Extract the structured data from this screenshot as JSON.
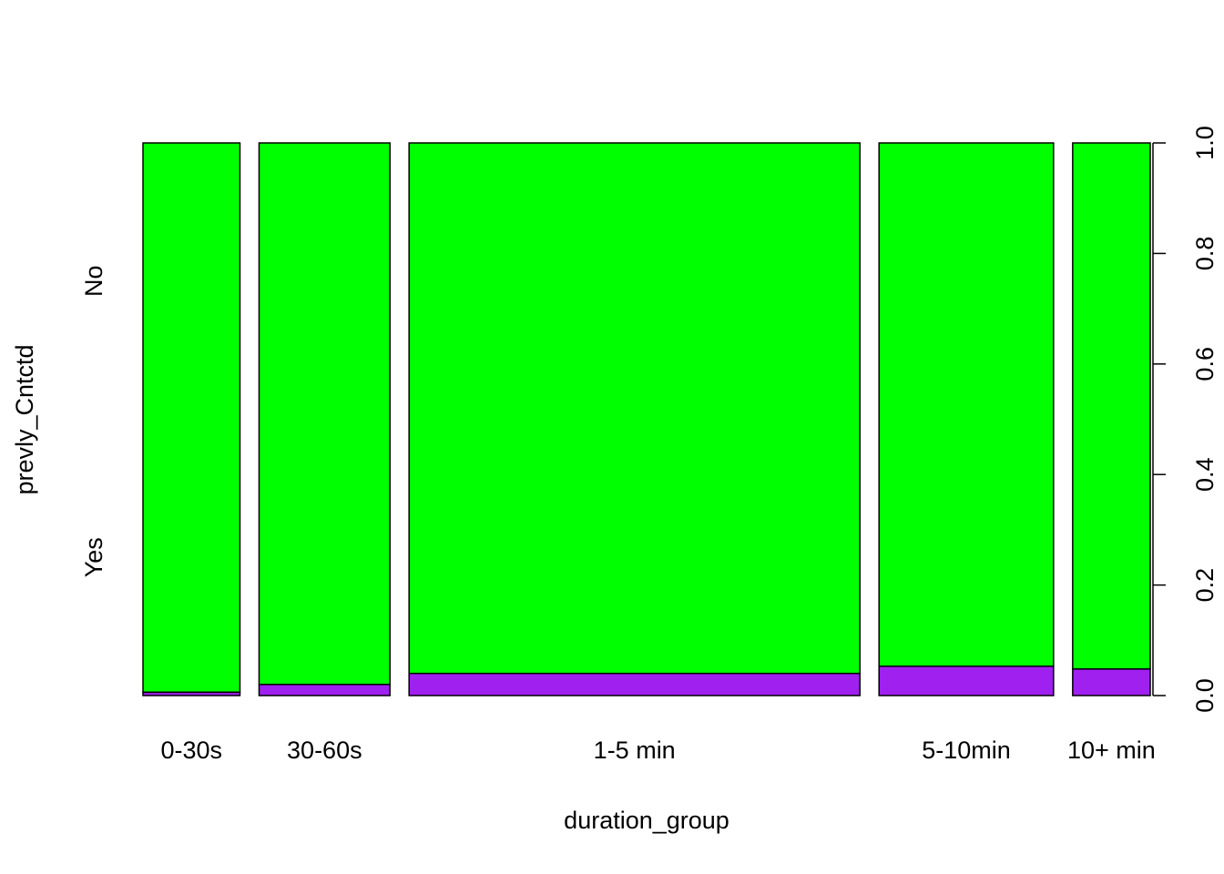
{
  "chart_data": {
    "type": "spineplot",
    "title": "",
    "xlabel": "duration_group",
    "ylabel": "prevly_Cntctd",
    "categories": [
      "0-30s",
      "30-60s",
      "1-5 min",
      "5-10min",
      "10+ min"
    ],
    "category_share": [
      0.1,
      0.135,
      0.465,
      0.18,
      0.08
    ],
    "levels": [
      "Yes",
      "No"
    ],
    "series": [
      {
        "name": "Yes",
        "values": [
          0.006,
          0.02,
          0.04,
          0.053,
          0.048
        ]
      },
      {
        "name": "No",
        "values": [
          0.994,
          0.98,
          0.96,
          0.947,
          0.952
        ]
      }
    ],
    "ylim": [
      0,
      1
    ],
    "y_ticks": [
      "0.0",
      "0.2",
      "0.4",
      "0.6",
      "0.8",
      "1.0"
    ],
    "grid": false,
    "colors": {
      "Yes": "#A020F0",
      "No": "#00FF00"
    }
  }
}
